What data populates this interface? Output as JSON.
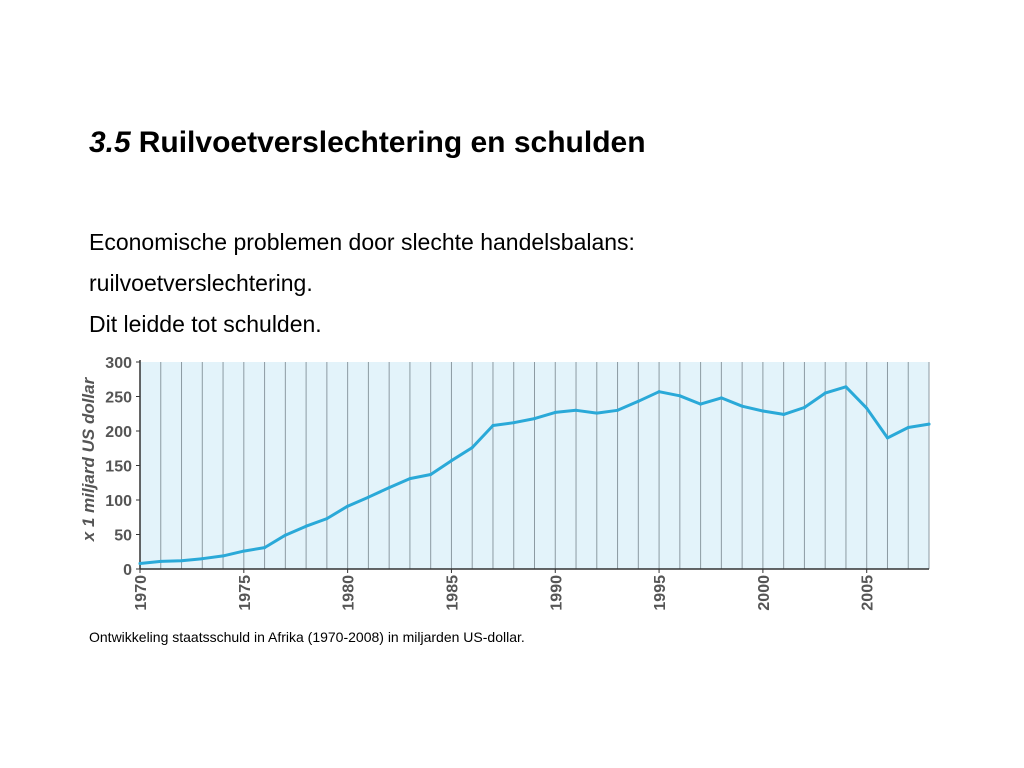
{
  "slide": {
    "title_number": "3.5",
    "title_text": "Ruilvoetverslechtering en schulden",
    "body_lines": [
      "Economische problemen door slechte handelsbalans:",
      "ruilvoetverslechtering.",
      "Dit leidde tot schulden."
    ],
    "caption": "Ontwikkeling staatsschuld in Afrika (1970-2008) in miljarden US-dollar."
  },
  "chart_data": {
    "type": "line",
    "title": "",
    "xlabel": "",
    "ylabel": "x 1 miljard US dollar",
    "xlim": [
      1970,
      2008
    ],
    "ylim": [
      0,
      300
    ],
    "y_ticks": [
      0,
      50,
      100,
      150,
      200,
      250,
      300
    ],
    "x_ticks": [
      1970,
      1975,
      1980,
      1985,
      1990,
      1995,
      2000,
      2005
    ],
    "grid": "vertical lines every year",
    "series": [
      {
        "x": [
          1970,
          1971,
          1972,
          1973,
          1974,
          1975,
          1976,
          1977,
          1978,
          1979,
          1980,
          1981,
          1982,
          1983,
          1984,
          1985,
          1986,
          1987,
          1988,
          1989,
          1990,
          1991,
          1992,
          1993,
          1994,
          1995,
          1996,
          1997,
          1998,
          1999,
          2000,
          2001,
          2002,
          2003,
          2004,
          2005,
          2006,
          2007,
          2008
        ],
        "values": [
          8,
          11,
          12,
          15,
          19,
          26,
          31,
          49,
          62,
          73,
          91,
          104,
          118,
          131,
          137,
          157,
          176,
          208,
          212,
          218,
          227,
          230,
          226,
          230,
          243,
          257,
          251,
          239,
          248,
          236,
          229,
          224,
          234,
          255,
          264,
          233,
          190,
          205,
          210
        ]
      }
    ],
    "colors": {
      "line": "#2aa9d8",
      "plot_background": "#e3f3fa",
      "grid": "#8c9aa2",
      "axis": "#333333",
      "tick_label": "#555555"
    }
  }
}
